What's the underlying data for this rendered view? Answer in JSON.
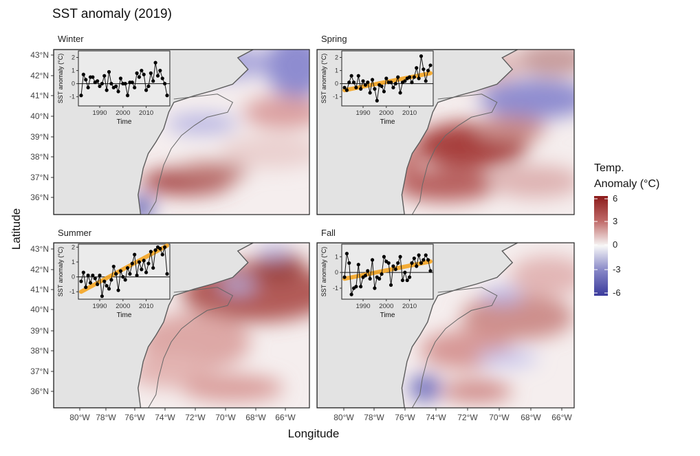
{
  "chart_data": {
    "type": "heatmap",
    "title": "SST anomaly (2019)",
    "xlabel": "Longitude",
    "ylabel": "Latitude",
    "x_ticks": [
      "80°W",
      "78°W",
      "76°W",
      "74°W",
      "72°W",
      "70°W",
      "68°W",
      "66°W"
    ],
    "y_ticks": [
      "43°N",
      "42°N",
      "41°N",
      "40°N",
      "39°N",
      "38°N",
      "37°N",
      "36°N"
    ],
    "legend": {
      "title_line1": "Temp.",
      "title_line2": "Anomaly (°C)",
      "ticks": [
        "6",
        "3",
        "0",
        "-3",
        "-6"
      ],
      "colors": [
        "#8b1a1a",
        "#c06a68",
        "#f7f7f7",
        "#8585c6",
        "#3b3b9c"
      ]
    },
    "inset": {
      "xlabel": "Time",
      "ylabel": "SST anomaly (°C)",
      "x_ticks": [
        "1990",
        "2000",
        "2010"
      ],
      "start_year": 1982,
      "end_year": 2019,
      "trend_color": "#f5a623"
    },
    "panels": [
      {
        "label": "Winter",
        "y_ticks": [
          "2",
          "1",
          "0",
          "-1"
        ],
        "ylim": [
          -1.7,
          2.5
        ],
        "trend": null,
        "values": [
          -0.9,
          0.7,
          0.3,
          -0.3,
          0.5,
          0.5,
          0.1,
          0.2,
          -0.2,
          0.0,
          0.6,
          -0.5,
          0.9,
          0.0,
          -0.3,
          -0.2,
          -0.6,
          0.4,
          0.0,
          0.0,
          -0.9,
          0.1,
          0.1,
          -0.3,
          0.8,
          0.5,
          1.0,
          0.7,
          -0.5,
          -0.2,
          0.8,
          0.2,
          1.6,
          0.6,
          1.0,
          0.4,
          0.0,
          -0.9
        ]
      },
      {
        "label": "Spring",
        "y_ticks": [
          "2",
          "1",
          "0",
          "-1"
        ],
        "ylim": [
          -1.7,
          2.5
        ],
        "trend": [
          -0.5,
          0.8
        ],
        "values": [
          -0.3,
          -0.5,
          0.1,
          0.6,
          0.1,
          -0.3,
          0.6,
          -0.4,
          0.2,
          -0.1,
          0.1,
          -0.7,
          0.3,
          -0.4,
          -1.3,
          -0.1,
          -0.2,
          -0.6,
          0.4,
          0.1,
          0.1,
          -0.3,
          0.0,
          0.5,
          -0.7,
          0.1,
          0.2,
          0.4,
          0.5,
          0.1,
          0.5,
          1.2,
          0.4,
          2.1,
          1.1,
          0.2,
          1.0,
          1.4
        ]
      },
      {
        "label": "Summer",
        "y_ticks": [
          "2",
          "1",
          "0",
          "-1"
        ],
        "ylim": [
          -1.5,
          2.2
        ],
        "trend": [
          -1.0,
          2.1
        ],
        "values": [
          -0.3,
          0.3,
          -0.7,
          0.1,
          -0.4,
          0.1,
          -0.1,
          -0.5,
          0.1,
          -1.3,
          -0.3,
          -0.6,
          -0.8,
          -0.2,
          0.7,
          0.2,
          -0.9,
          0.4,
          0.0,
          -0.2,
          0.6,
          0.2,
          0.9,
          1.5,
          0.1,
          1.0,
          0.5,
          1.1,
          0.3,
          0.9,
          1.7,
          0.6,
          1.8,
          2.0,
          1.9,
          1.5,
          2.0,
          0.2
        ]
      },
      {
        "label": "Fall",
        "y_ticks": [
          "1",
          "0",
          "-1"
        ],
        "ylim": [
          -1.7,
          1.8
        ],
        "trend": [
          -0.4,
          0.7
        ],
        "values": [
          -0.3,
          1.2,
          0.6,
          -1.4,
          -1.0,
          -0.9,
          0.5,
          -0.9,
          -0.3,
          -0.2,
          0.1,
          -0.4,
          0.8,
          -1.0,
          -0.3,
          -0.4,
          -0.1,
          1.0,
          0.7,
          0.6,
          -0.8,
          0.4,
          0.2,
          0.6,
          1.0,
          -0.5,
          0.0,
          -0.5,
          -0.3,
          0.6,
          0.9,
          0.4,
          1.1,
          0.6,
          0.8,
          1.1,
          0.8,
          0.1
        ]
      }
    ]
  }
}
